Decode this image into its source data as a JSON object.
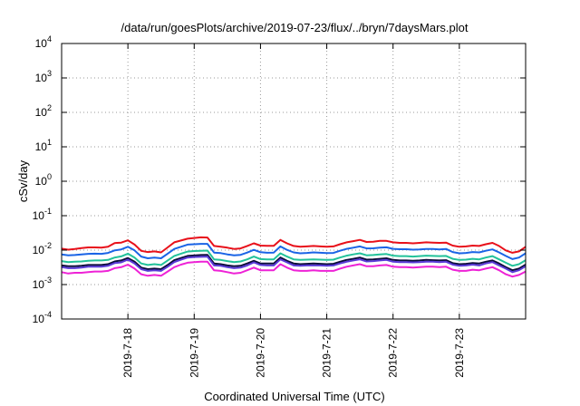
{
  "chart_data": {
    "type": "line",
    "title": "/data/run/goesPlots/archive/2019-07-23/flux/../bryn/7daysMars.plot",
    "xlabel": "Coordinated Universal Time (UTC)",
    "ylabel": "cSv/day",
    "y_scale": "log",
    "ylim": [
      0.0001,
      10000
    ],
    "xlim": [
      0,
      7
    ],
    "grid": true,
    "y_ticks": [
      {
        "value": 0.0001,
        "base": "10",
        "exp": "-4"
      },
      {
        "value": 0.001,
        "base": "10",
        "exp": "-3"
      },
      {
        "value": 0.01,
        "base": "10",
        "exp": "-2"
      },
      {
        "value": 0.1,
        "base": "10",
        "exp": "-1"
      },
      {
        "value": 1,
        "base": "10",
        "exp": "0"
      },
      {
        "value": 10,
        "base": "10",
        "exp": "1"
      },
      {
        "value": 100,
        "base": "10",
        "exp": "2"
      },
      {
        "value": 1000,
        "base": "10",
        "exp": "3"
      },
      {
        "value": 10000,
        "base": "10",
        "exp": "4"
      }
    ],
    "x_ticks": [
      {
        "value": 1,
        "label": "2019-7-18"
      },
      {
        "value": 2,
        "label": "2019-7-19"
      },
      {
        "value": 3,
        "label": "2019-7-20"
      },
      {
        "value": 4,
        "label": "2019-7-21"
      },
      {
        "value": 5,
        "label": "2019-7-22"
      },
      {
        "value": 6,
        "label": "2019-7-23"
      }
    ],
    "x": [
      0.0,
      0.1,
      0.2,
      0.3,
      0.4,
      0.5,
      0.6,
      0.7,
      0.8,
      0.9,
      1.0,
      1.1,
      1.2,
      1.3,
      1.4,
      1.5,
      1.6,
      1.7,
      1.8,
      1.9,
      2.0,
      2.1,
      2.2,
      2.3,
      2.4,
      2.5,
      2.6,
      2.7,
      2.8,
      2.9,
      3.0,
      3.1,
      3.2,
      3.3,
      3.4,
      3.5,
      3.6,
      3.7,
      3.8,
      3.9,
      4.0,
      4.1,
      4.2,
      4.3,
      4.4,
      4.5,
      4.6,
      4.7,
      4.8,
      4.9,
      5.0,
      5.1,
      5.2,
      5.3,
      5.4,
      5.5,
      5.6,
      5.7,
      5.8,
      5.9,
      6.0,
      6.1,
      6.2,
      6.3,
      6.4,
      6.5,
      6.6,
      6.7,
      6.8,
      6.9,
      7.0
    ],
    "series": [
      {
        "color": "#e8101a",
        "values": [
          0.011,
          0.0103,
          0.0108,
          0.0115,
          0.012,
          0.012,
          0.0118,
          0.0125,
          0.016,
          0.0165,
          0.0192,
          0.0145,
          0.0095,
          0.0088,
          0.0092,
          0.0086,
          0.012,
          0.0168,
          0.019,
          0.0215,
          0.0225,
          0.0235,
          0.0232,
          0.0132,
          0.0125,
          0.0118,
          0.0108,
          0.0112,
          0.0132,
          0.0158,
          0.0135,
          0.0133,
          0.0133,
          0.0198,
          0.0158,
          0.0132,
          0.0125,
          0.0128,
          0.0132,
          0.0128,
          0.0125,
          0.0128,
          0.0148,
          0.0168,
          0.0182,
          0.0198,
          0.0172,
          0.0175,
          0.0185,
          0.0186,
          0.0168,
          0.0162,
          0.0162,
          0.0158,
          0.0162,
          0.0168,
          0.0165,
          0.0162,
          0.0165,
          0.0135,
          0.0125,
          0.0128,
          0.0135,
          0.0132,
          0.0148,
          0.0162,
          0.0132,
          0.0098,
          0.0084,
          0.0092,
          0.0125
        ]
      },
      {
        "color": "#1a64e6",
        "values": [
          0.0075,
          0.0071,
          0.0072,
          0.0075,
          0.0078,
          0.0079,
          0.0078,
          0.0083,
          0.0098,
          0.0105,
          0.0125,
          0.0098,
          0.0065,
          0.0058,
          0.0061,
          0.0058,
          0.0079,
          0.0108,
          0.0125,
          0.0145,
          0.0148,
          0.0152,
          0.0152,
          0.0085,
          0.0082,
          0.0075,
          0.0071,
          0.0073,
          0.0085,
          0.0102,
          0.0087,
          0.0084,
          0.0085,
          0.0128,
          0.0102,
          0.0086,
          0.0081,
          0.0083,
          0.0086,
          0.0084,
          0.0082,
          0.0083,
          0.0096,
          0.0109,
          0.0118,
          0.0128,
          0.0112,
          0.0113,
          0.0118,
          0.0121,
          0.0109,
          0.0106,
          0.0106,
          0.0103,
          0.0105,
          0.0108,
          0.0108,
          0.0105,
          0.0108,
          0.0088,
          0.0081,
          0.0083,
          0.0088,
          0.0086,
          0.0096,
          0.0105,
          0.0086,
          0.0068,
          0.0055,
          0.0061,
          0.0081
        ]
      },
      {
        "color": "#22c29a",
        "values": [
          0.0048,
          0.0045,
          0.0046,
          0.0047,
          0.0049,
          0.005,
          0.005,
          0.0052,
          0.0061,
          0.0066,
          0.0079,
          0.0061,
          0.0041,
          0.0037,
          0.0039,
          0.0037,
          0.005,
          0.0068,
          0.0079,
          0.0091,
          0.0094,
          0.0096,
          0.0097,
          0.0054,
          0.0052,
          0.0048,
          0.0045,
          0.0047,
          0.0054,
          0.0065,
          0.0055,
          0.0054,
          0.0054,
          0.0081,
          0.0065,
          0.0054,
          0.0052,
          0.0053,
          0.0054,
          0.0053,
          0.0052,
          0.0053,
          0.0061,
          0.0069,
          0.0075,
          0.0081,
          0.0071,
          0.0072,
          0.0075,
          0.0077,
          0.0069,
          0.0067,
          0.0067,
          0.0065,
          0.0067,
          0.0069,
          0.0068,
          0.0067,
          0.0068,
          0.0056,
          0.0052,
          0.0053,
          0.0056,
          0.0054,
          0.0061,
          0.0067,
          0.0054,
          0.0043,
          0.0035,
          0.0039,
          0.0051
        ]
      },
      {
        "color": "#0c0c3a",
        "values": [
          0.0036,
          0.0034,
          0.0034,
          0.0035,
          0.0037,
          0.0037,
          0.0037,
          0.0039,
          0.0047,
          0.005,
          0.0059,
          0.0046,
          0.0031,
          0.0028,
          0.0029,
          0.0028,
          0.0037,
          0.0051,
          0.0059,
          0.0068,
          0.007,
          0.0072,
          0.0073,
          0.0041,
          0.0039,
          0.0036,
          0.0034,
          0.0035,
          0.0041,
          0.0049,
          0.0041,
          0.0041,
          0.0041,
          0.0061,
          0.0049,
          0.0041,
          0.0039,
          0.004,
          0.0041,
          0.004,
          0.0039,
          0.004,
          0.0046,
          0.0052,
          0.0056,
          0.0061,
          0.0053,
          0.0054,
          0.0056,
          0.0058,
          0.0052,
          0.005,
          0.005,
          0.0049,
          0.005,
          0.0052,
          0.0051,
          0.005,
          0.0051,
          0.0042,
          0.0039,
          0.004,
          0.0042,
          0.0041,
          0.0046,
          0.005,
          0.0041,
          0.0032,
          0.0026,
          0.0029,
          0.0038
        ]
      },
      {
        "color": "#5a3ad8",
        "values": [
          0.0032,
          0.003,
          0.003,
          0.0031,
          0.0033,
          0.0033,
          0.0033,
          0.0035,
          0.0042,
          0.0044,
          0.0053,
          0.0041,
          0.0028,
          0.0025,
          0.0026,
          0.0025,
          0.0033,
          0.0045,
          0.0053,
          0.0061,
          0.0063,
          0.0064,
          0.0065,
          0.0036,
          0.0035,
          0.0032,
          0.003,
          0.0031,
          0.0036,
          0.0044,
          0.0037,
          0.0036,
          0.0036,
          0.0054,
          0.0044,
          0.0036,
          0.0035,
          0.0036,
          0.0036,
          0.0036,
          0.0035,
          0.0036,
          0.0041,
          0.0046,
          0.005,
          0.0054,
          0.0047,
          0.0048,
          0.005,
          0.0052,
          0.0046,
          0.0045,
          0.0045,
          0.0044,
          0.0045,
          0.0046,
          0.0046,
          0.0045,
          0.0046,
          0.0038,
          0.0035,
          0.0036,
          0.0038,
          0.0036,
          0.0041,
          0.0045,
          0.0036,
          0.0029,
          0.0023,
          0.0026,
          0.0034
        ]
      },
      {
        "color": "#ee22d6",
        "values": [
          0.0023,
          0.0021,
          0.0022,
          0.0022,
          0.0023,
          0.0024,
          0.0024,
          0.0025,
          0.003,
          0.0032,
          0.0038,
          0.0029,
          0.002,
          0.0018,
          0.0019,
          0.0018,
          0.0024,
          0.0032,
          0.0038,
          0.0043,
          0.0045,
          0.0046,
          0.0046,
          0.0026,
          0.0025,
          0.0023,
          0.0021,
          0.0022,
          0.0026,
          0.0031,
          0.0026,
          0.0026,
          0.0026,
          0.0039,
          0.0031,
          0.0026,
          0.0025,
          0.0025,
          0.0026,
          0.0025,
          0.0025,
          0.0025,
          0.0029,
          0.0033,
          0.0036,
          0.0039,
          0.0034,
          0.0034,
          0.0036,
          0.0037,
          0.0033,
          0.0032,
          0.0032,
          0.0031,
          0.0032,
          0.0033,
          0.0033,
          0.0032,
          0.0033,
          0.0027,
          0.0025,
          0.0025,
          0.0027,
          0.0026,
          0.0029,
          0.0032,
          0.0026,
          0.002,
          0.0017,
          0.0019,
          0.0024
        ]
      }
    ]
  }
}
